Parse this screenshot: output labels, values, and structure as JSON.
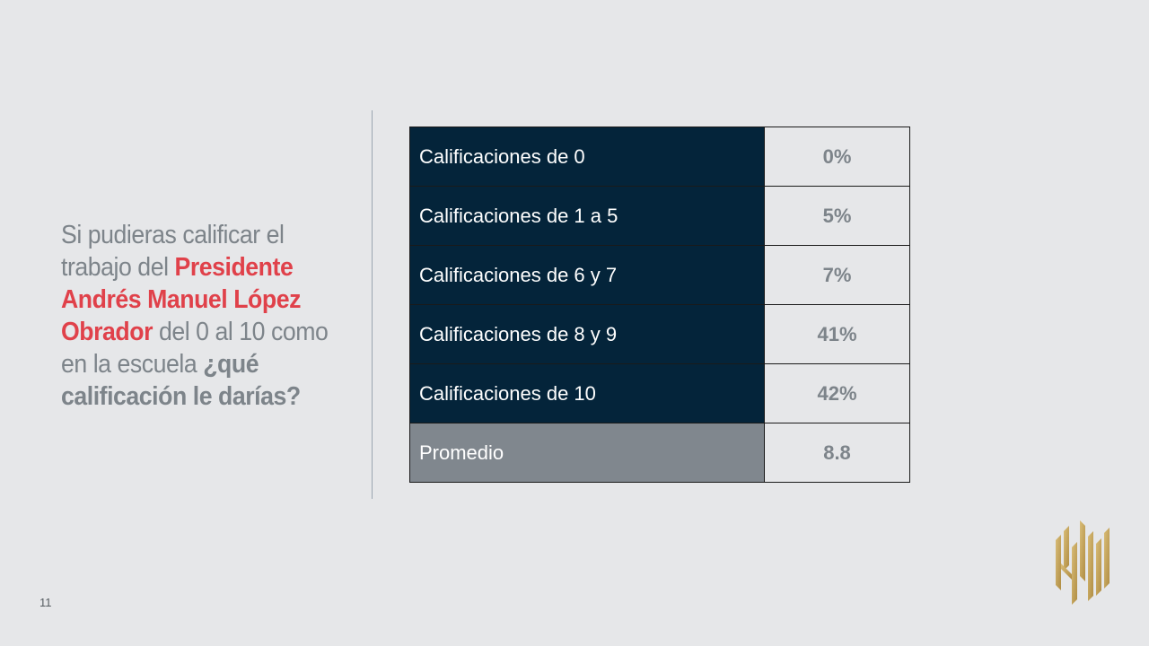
{
  "question": {
    "part1": "Si pudieras calificar el trabajo del ",
    "highlight": "Presidente Andrés Manuel López Obrador",
    "part2": " del 0 al 10 como en la escuela ",
    "bold": "¿qué calificación le darías?"
  },
  "table": {
    "rows": [
      {
        "label": "Calificaciones de 0",
        "value": "0%"
      },
      {
        "label": "Calificaciones de 1 a 5",
        "value": "5%"
      },
      {
        "label": "Calificaciones de 6 y 7",
        "value": "7%"
      },
      {
        "label": "Calificaciones de 8 y 9",
        "value": "41%"
      },
      {
        "label": "Calificaciones de 10",
        "value": "42%"
      },
      {
        "label": "Promedio",
        "value": "8.8"
      }
    ]
  },
  "page_number": "11",
  "colors": {
    "background": "#e6e7e9",
    "row_dark": "#04243a",
    "row_average": "#80878e",
    "highlight_red": "#e0414a",
    "text_gray": "#7d848a",
    "logo_gold": "#c9a65a"
  },
  "logo": {
    "icon": "gold-monogram-logo"
  }
}
